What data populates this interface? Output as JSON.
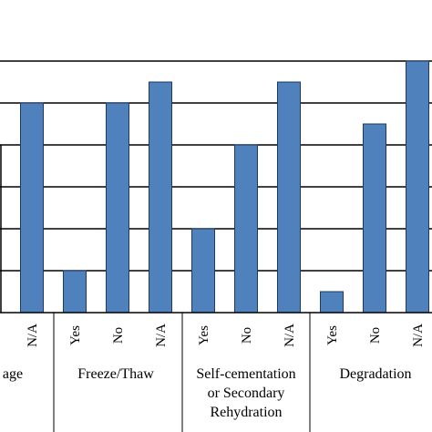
{
  "chart_data": {
    "type": "bar",
    "grid": true,
    "bar_color": "#4F81BD",
    "ylim": [
      0,
      13
    ],
    "groups": [
      {
        "label": "age",
        "categories": [
          "N/A"
        ],
        "values": [
          10
        ]
      },
      {
        "label": "Freeze/Thaw",
        "categories": [
          "Yes",
          "No",
          "N/A"
        ],
        "values": [
          2,
          10,
          11
        ]
      },
      {
        "label": "Self-cementation\nor Secondary\nRehydration",
        "categories": [
          "Yes",
          "No",
          "N/A"
        ],
        "values": [
          4,
          8,
          11
        ]
      },
      {
        "label": "Degradation",
        "categories": [
          "Yes",
          "No",
          "N/A"
        ],
        "values": [
          1,
          9,
          12
        ]
      }
    ]
  }
}
